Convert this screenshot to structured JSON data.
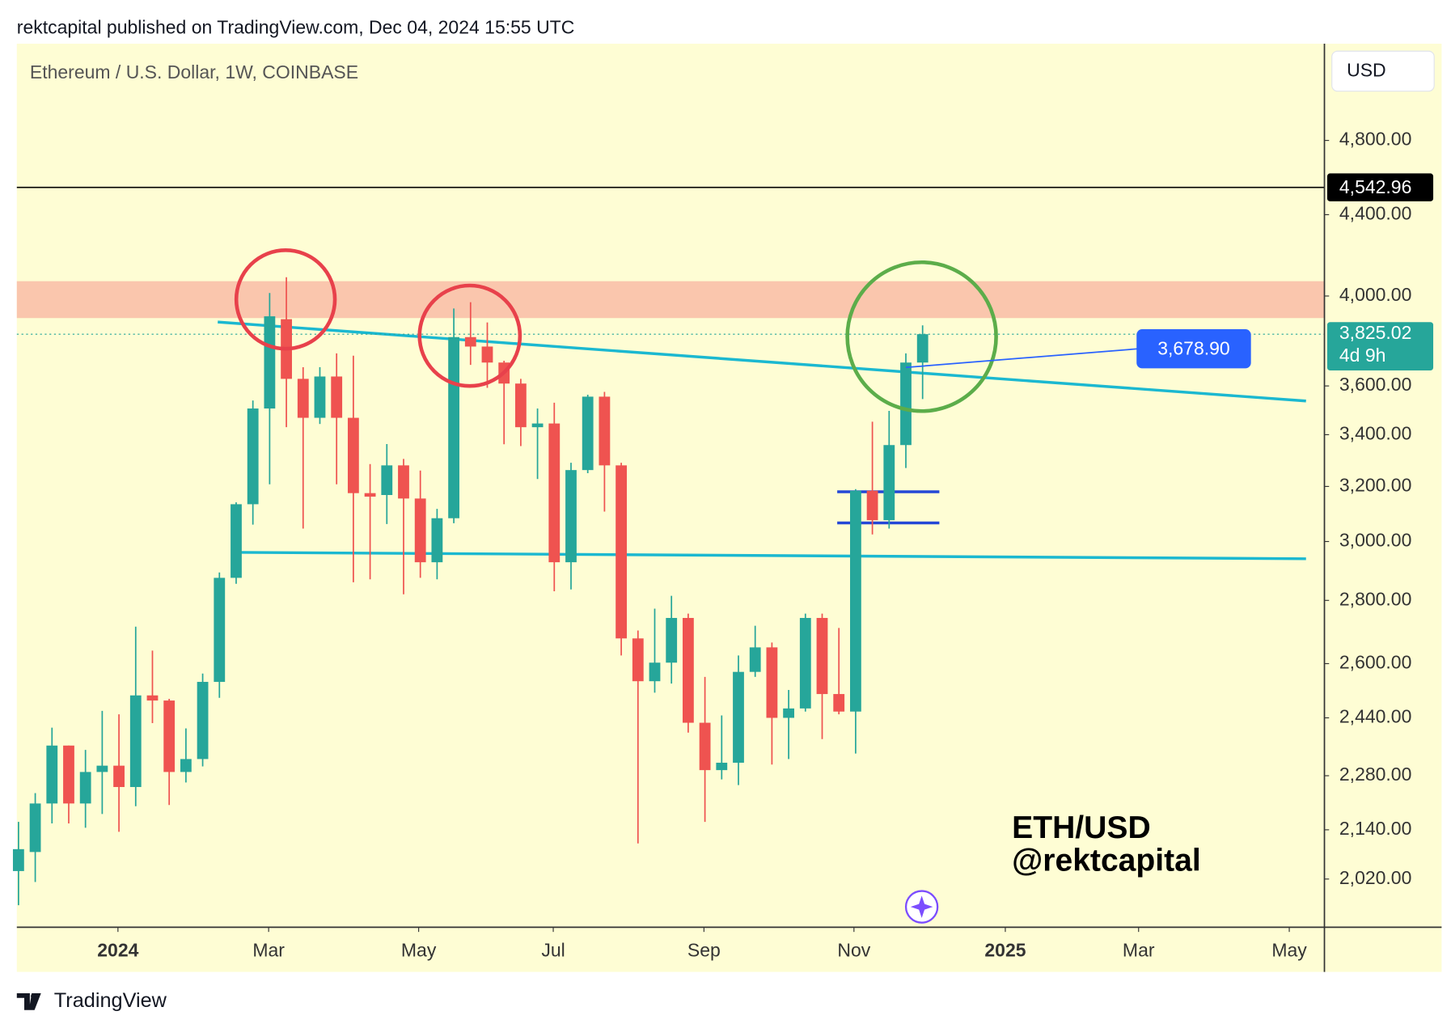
{
  "header": "rektcapital published on TradingView.com, Dec 04, 2024 15:55 UTC",
  "footer": "TradingView",
  "chart_data": {
    "type": "candlestick",
    "title": "Ethereum / U.S. Dollar, 1W, COINBASE",
    "currency": "USD",
    "annotation": "ETH/USD",
    "author": "@rektcapital",
    "log_scale": true,
    "up_color": "#26a69a",
    "down_color": "#ef5350",
    "open": [
      2039,
      2085,
      2207,
      2362,
      2207,
      2290,
      2307,
      2250,
      2505,
      2490,
      2290,
      2325,
      2545,
      2875,
      3134,
      3506,
      3893,
      3630,
      3468,
      3640,
      3468,
      3175,
      3168,
      3280,
      3155,
      2928,
      3083,
      3812,
      3770,
      3700,
      3610,
      3430,
      3445,
      2928,
      3262,
      3555,
      3280,
      2678,
      2547,
      2603,
      2743,
      2426,
      2295,
      2315,
      2575,
      2650,
      2440,
      2467,
      2743,
      2509,
      2458,
      3184,
      3076,
      3359,
      3700
    ],
    "high": [
      2160,
      2234,
      2412,
      2362,
      2350,
      2460,
      2450,
      2715,
      2640,
      2495,
      2410,
      2570,
      2893,
      3141,
      3539,
      4014,
      4089,
      3680,
      3680,
      3740,
      3730,
      3285,
      3363,
      3305,
      3260,
      3117,
      3942,
      3971,
      3878,
      3708,
      3630,
      3506,
      3530,
      3290,
      3563,
      3575,
      3290,
      2703,
      2773,
      2815,
      2757,
      2560,
      2447,
      2625,
      2718,
      2665,
      2521,
      2757,
      2757,
      2711,
      3190,
      3452,
      3496,
      3740,
      3865
    ],
    "low": [
      1959,
      2013,
      2156,
      2156,
      2145,
      2180,
      2135,
      2200,
      2425,
      2203,
      2262,
      2305,
      2498,
      2855,
      3060,
      3208,
      3430,
      3046,
      3443,
      3208,
      2860,
      2870,
      3062,
      2820,
      2875,
      2870,
      3065,
      3690,
      3592,
      3362,
      3355,
      3228,
      2830,
      2836,
      3250,
      3107,
      2625,
      2106,
      2513,
      2540,
      2398,
      2160,
      2270,
      2255,
      2560,
      2310,
      2325,
      2458,
      2380,
      2450,
      2340,
      3025,
      3046,
      3270,
      3545
    ],
    "close": [
      2092,
      2207,
      2362,
      2207,
      2290,
      2307,
      2250,
      2505,
      2490,
      2290,
      2325,
      2545,
      2875,
      3134,
      3506,
      3906,
      3630,
      3468,
      3640,
      3468,
      3175,
      3162,
      3280,
      3155,
      2928,
      3083,
      3812,
      3770,
      3700,
      3610,
      3430,
      3445,
      2928,
      3262,
      3555,
      3280,
      2678,
      2547,
      2603,
      2743,
      2426,
      2295,
      2315,
      2575,
      2650,
      2440,
      2467,
      2743,
      2509,
      2458,
      3184,
      3076,
      3359,
      3700,
      3825.02
    ],
    "xlim": [
      -0.1,
      78
    ],
    "xticks": [
      {
        "value": 5.94,
        "label": "2024"
      },
      {
        "value": 14.94,
        "label": "Mar"
      },
      {
        "value": 23.9,
        "label": "May"
      },
      {
        "value": 31.94,
        "label": "Jul"
      },
      {
        "value": 40.94,
        "label": "Sep"
      },
      {
        "value": 49.9,
        "label": "Nov"
      },
      {
        "value": 58.94,
        "label": "2025"
      },
      {
        "value": 66.9,
        "label": "Mar"
      },
      {
        "value": 75.9,
        "label": "May"
      }
    ],
    "ylim": [
      1909,
      5376
    ],
    "yticks": [
      {
        "value": 2020,
        "label": "2,020.00"
      },
      {
        "value": 2140,
        "label": "2,140.00"
      },
      {
        "value": 2280,
        "label": "2,280.00"
      },
      {
        "value": 2440,
        "label": "2,440.00"
      },
      {
        "value": 2600,
        "label": "2,600.00"
      },
      {
        "value": 2800,
        "label": "2,800.00"
      },
      {
        "value": 3000,
        "label": "3,000.00"
      },
      {
        "value": 3200,
        "label": "3,200.00"
      },
      {
        "value": 3400,
        "label": "3,400.00"
      },
      {
        "value": 3600,
        "label": "3,600.00"
      },
      {
        "value": 4000,
        "label": "4,000.00"
      },
      {
        "value": 4400,
        "label": "4,400.00"
      },
      {
        "value": 4800,
        "label": "4,800.00"
      }
    ],
    "zone": {
      "from": 3898,
      "to": 4070,
      "color": "#f9c0a8"
    },
    "horizontal_line": {
      "value": 4542.96,
      "label": "4,542.96",
      "color": "#000000"
    },
    "last_price": {
      "value": 3825.02,
      "label": "3,825.02",
      "countdown": "4d 9h",
      "color": "#26a69a"
    },
    "price_label": {
      "value": 3678.9,
      "label": "3,678.90",
      "color": "#2962ff"
    },
    "trendlines": [
      {
        "color": "#1bb8d0",
        "points": [
          [
            11.9,
            3880
          ],
          [
            76.9,
            3537
          ]
        ]
      },
      {
        "color": "#1bb8d0",
        "points": [
          [
            13.3,
            2962
          ],
          [
            76.9,
            2940
          ]
        ]
      },
      {
        "color": "#2447d6",
        "points": [
          [
            48.9,
            3180
          ],
          [
            55.0,
            3180
          ]
        ]
      },
      {
        "color": "#2447d6",
        "points": [
          [
            48.9,
            3066
          ],
          [
            55.0,
            3066
          ]
        ]
      }
    ]
  }
}
